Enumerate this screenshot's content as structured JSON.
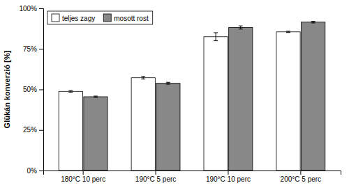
{
  "chart_data": {
    "type": "bar",
    "categories": [
      "180°C 10 perc",
      "190°C 5 perc",
      "190°C 10 perc",
      "200°C 5 perc"
    ],
    "series": [
      {
        "name": "teljes zagy",
        "color": "#ffffff",
        "values": [
          0.488,
          0.572,
          0.825,
          0.855
        ],
        "errors": [
          0.005,
          0.008,
          0.025,
          0.004
        ]
      },
      {
        "name": "mosott rost",
        "color": "#888888",
        "values": [
          0.455,
          0.538,
          0.882,
          0.915
        ],
        "errors": [
          0.004,
          0.006,
          0.01,
          0.005
        ]
      }
    ],
    "ylabel": "Glükán konverzió [%]",
    "ylim": [
      0.0,
      1.0
    ],
    "yticks": [
      {
        "value": 0.0,
        "label": "0%"
      },
      {
        "value": 0.25,
        "label": "25%"
      },
      {
        "value": 0.5,
        "label": "50%"
      },
      {
        "value": 0.75,
        "label": "75%"
      },
      {
        "value": 1.0,
        "label": "100%"
      }
    ],
    "legend": "upper left",
    "grid": false
  }
}
